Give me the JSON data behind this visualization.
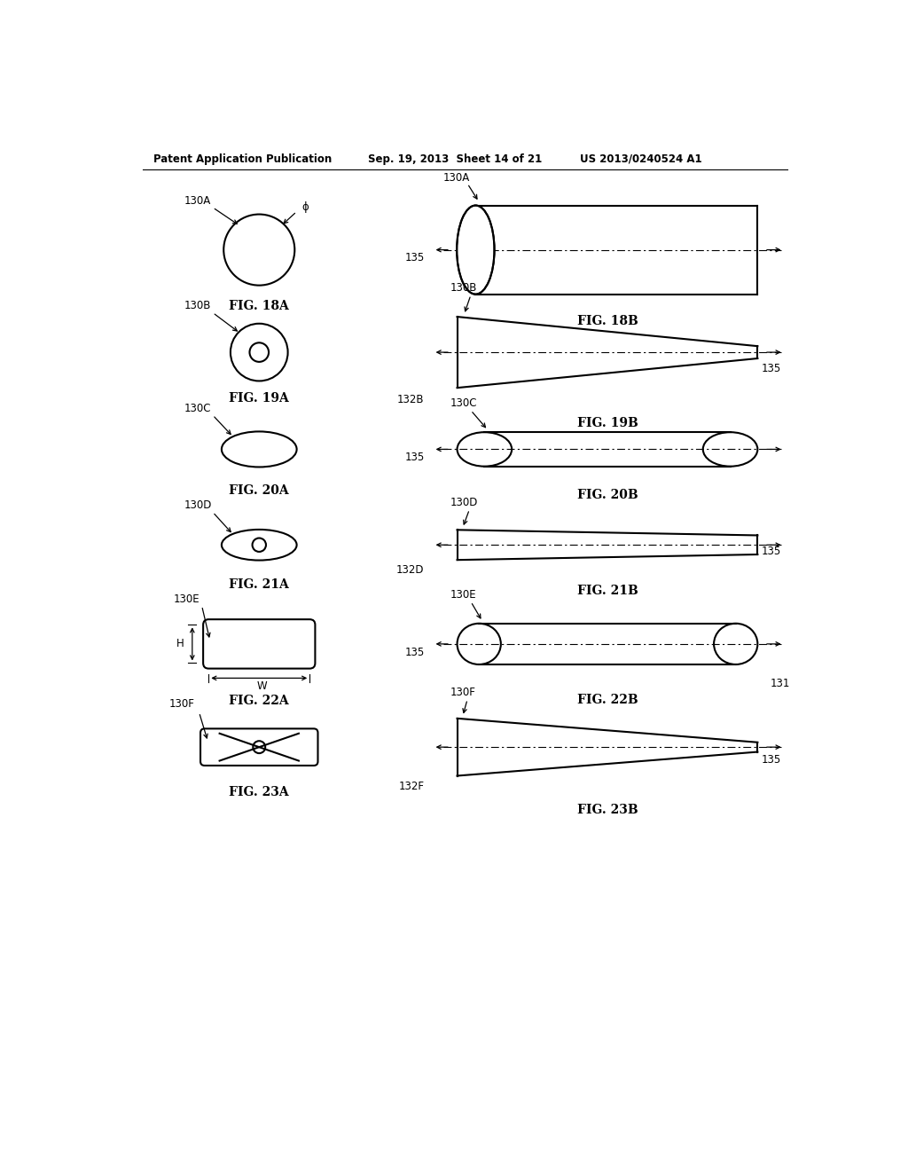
{
  "header_left": "Patent Application Publication",
  "header_mid": "Sep. 19, 2013  Sheet 14 of 21",
  "header_right": "US 2013/0240524 A1",
  "bg_color": "#ffffff",
  "line_color": "#000000"
}
